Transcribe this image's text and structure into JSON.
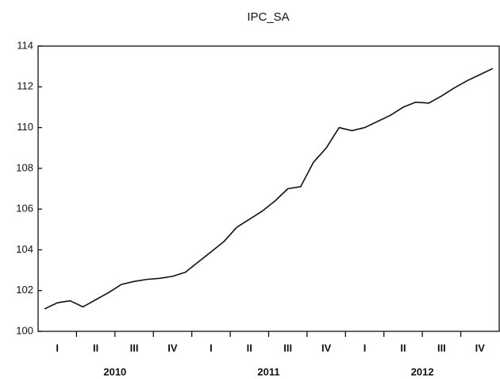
{
  "chart_data": {
    "type": "line",
    "title": "IPC_SA",
    "categories": [
      null,
      null,
      null,
      null,
      null,
      null,
      null,
      null,
      null,
      null,
      null,
      null,
      null,
      null,
      null,
      null,
      null,
      null,
      null,
      null,
      null,
      null,
      null,
      null,
      null,
      null,
      null,
      null,
      null,
      null,
      null,
      null,
      null,
      null,
      null,
      null
    ],
    "x_groups": {
      "years": [
        "2010",
        "2011",
        "2012"
      ],
      "quarters": [
        "I",
        "II",
        "III",
        "IV"
      ]
    },
    "series": [
      {
        "name": "IPC_SA",
        "color": "#111111",
        "values": [
          101.1,
          101.4,
          101.5,
          101.2,
          101.55,
          101.9,
          102.3,
          102.45,
          102.55,
          102.6,
          102.7,
          102.9,
          103.4,
          103.9,
          104.4,
          105.1,
          105.5,
          105.9,
          106.4,
          107.0,
          107.1,
          108.3,
          109.0,
          110.0,
          109.85,
          110.0,
          110.3,
          110.6,
          111.0,
          111.25,
          111.2,
          111.55,
          111.95,
          112.3,
          112.6,
          112.9
        ]
      }
    ],
    "ylim": [
      100,
      114
    ],
    "yticks": [
      100,
      102,
      104,
      106,
      108,
      110,
      112,
      114
    ],
    "grid": false
  }
}
